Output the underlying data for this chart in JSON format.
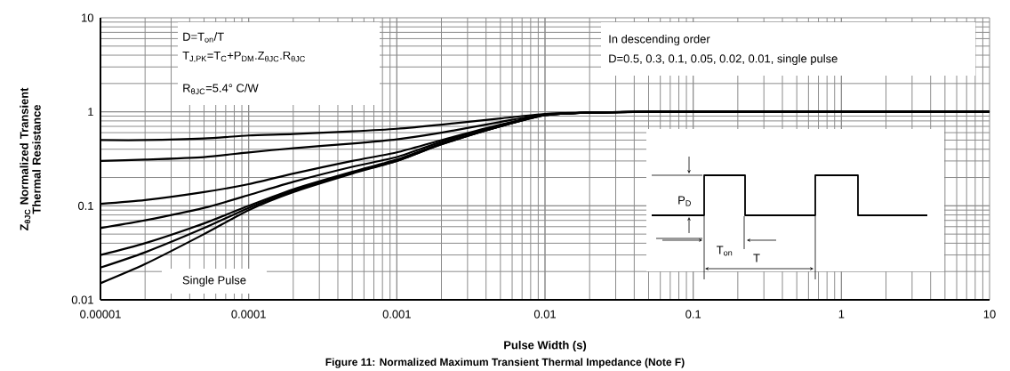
{
  "chart_data": {
    "type": "line",
    "title": "Figure 11: Normalized Maximum Transient Thermal Impedance (Note F)",
    "xlabel": "Pulse Width (s)",
    "ylabel": "Z$_{θJC}$ Normalized Transient Thermal Resistance",
    "x": [
      1e-05,
      2e-05,
      5e-05,
      0.0001,
      0.0002,
      0.0005,
      0.001,
      0.002,
      0.005,
      0.01,
      0.02,
      0.05,
      0.1,
      1,
      10
    ],
    "series": [
      {
        "color": "#000000",
        "values": [
          0.5,
          0.5,
          0.52,
          0.56,
          0.58,
          0.62,
          0.66,
          0.73,
          0.85,
          0.95,
          0.98,
          1,
          1,
          1,
          1
        ]
      },
      {
        "color": "#000000",
        "values": [
          0.3,
          0.31,
          0.33,
          0.37,
          0.41,
          0.46,
          0.51,
          0.6,
          0.78,
          0.94,
          0.98,
          1,
          1,
          1,
          1
        ]
      },
      {
        "color": "#000000",
        "values": [
          0.105,
          0.115,
          0.14,
          0.17,
          0.22,
          0.3,
          0.37,
          0.5,
          0.73,
          0.93,
          0.98,
          1,
          1,
          1,
          1
        ]
      },
      {
        "color": "#000000",
        "values": [
          0.058,
          0.07,
          0.095,
          0.13,
          0.18,
          0.26,
          0.33,
          0.48,
          0.72,
          0.93,
          0.98,
          1,
          1,
          1,
          1
        ]
      },
      {
        "color": "#000000",
        "values": [
          0.03,
          0.04,
          0.065,
          0.1,
          0.15,
          0.23,
          0.31,
          0.46,
          0.7,
          0.92,
          0.98,
          1,
          1,
          1,
          1
        ]
      },
      {
        "color": "#000000",
        "values": [
          0.022,
          0.032,
          0.058,
          0.095,
          0.145,
          0.225,
          0.3,
          0.45,
          0.7,
          0.92,
          0.98,
          1,
          1,
          1,
          1
        ]
      },
      {
        "name": "Single Pulse",
        "color": "#000000",
        "values": [
          0.015,
          0.024,
          0.05,
          0.09,
          0.14,
          0.22,
          0.3,
          0.45,
          0.7,
          0.92,
          0.98,
          1,
          1,
          1,
          1
        ]
      }
    ],
    "xlim": [
      1e-05,
      10
    ],
    "ylim": [
      0.01,
      10
    ],
    "xticks": [
      {
        "value": 1e-05,
        "label": "0.00001"
      },
      {
        "value": 0.0001,
        "label": "0.0001"
      },
      {
        "value": 0.001,
        "label": "0.001"
      },
      {
        "value": 0.01,
        "label": "0.01"
      },
      {
        "value": 0.1,
        "label": "0.1"
      },
      {
        "value": 1,
        "label": "1"
      },
      {
        "value": 10,
        "label": "10"
      }
    ],
    "yticks": [
      {
        "value": 0.01,
        "label": "0.01"
      },
      {
        "value": 0.1,
        "label": "0.1"
      },
      {
        "value": 1,
        "label": "1"
      },
      {
        "value": 10,
        "label": "10"
      }
    ],
    "log": "xy",
    "grid": true,
    "marker": "none",
    "line_style": "solid",
    "annotations": [
      "D=T$_{on}$/T",
      "T$_{J,PK}$=T$_{C}$+P$_{DM}$.Z$_{θJC}$.R$_{θJC}$",
      "R$_{θJC}$=5.4° C/W",
      "In descending order",
      "D=0.5, 0.3, 0.1, 0.05, 0.02, 0.01, single pulse",
      "P$_{D}$",
      "T$_{on}$",
      "T"
    ]
  }
}
